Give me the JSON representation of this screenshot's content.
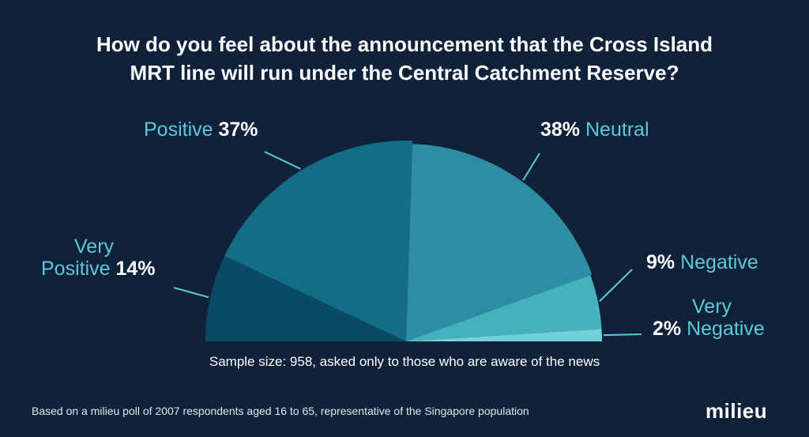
{
  "title_line1": "How do you feel about the announcement that the Cross Island",
  "title_line2": "MRT line will run under the Central Catchment Reserve?",
  "chart_data": {
    "type": "pie",
    "layout": "semicircle",
    "categories": [
      "Very Positive",
      "Positive",
      "Neutral",
      "Negative",
      "Very Negative"
    ],
    "values": [
      14,
      37,
      38,
      9,
      2
    ],
    "colors": [
      "#0b4a66",
      "#136d84",
      "#2d8ea3",
      "#44b1bd",
      "#73d0d9"
    ],
    "unit": "%"
  },
  "labels": {
    "very_positive": {
      "name_line1": "Very",
      "name_line2": "Positive",
      "pct": "14%"
    },
    "positive": {
      "name": "Positive",
      "pct": "37%"
    },
    "neutral": {
      "name": "Neutral",
      "pct": "38%"
    },
    "negative": {
      "name": "Negative",
      "pct": "9%"
    },
    "very_negative": {
      "name_line1": "Very",
      "name_line2": "Negative",
      "pct": "2%"
    }
  },
  "sample_note": "Sample size: 958, asked only to those who are aware of the news",
  "footnote": "Based on a milieu poll of 2007 respondents aged 16 to 65, representative of the Singapore population",
  "logo": "milieu",
  "colors": {
    "background": "#10223a",
    "label_name": "#5cc9d6",
    "leader": "#5cc9d6",
    "text": "#ffffff"
  }
}
